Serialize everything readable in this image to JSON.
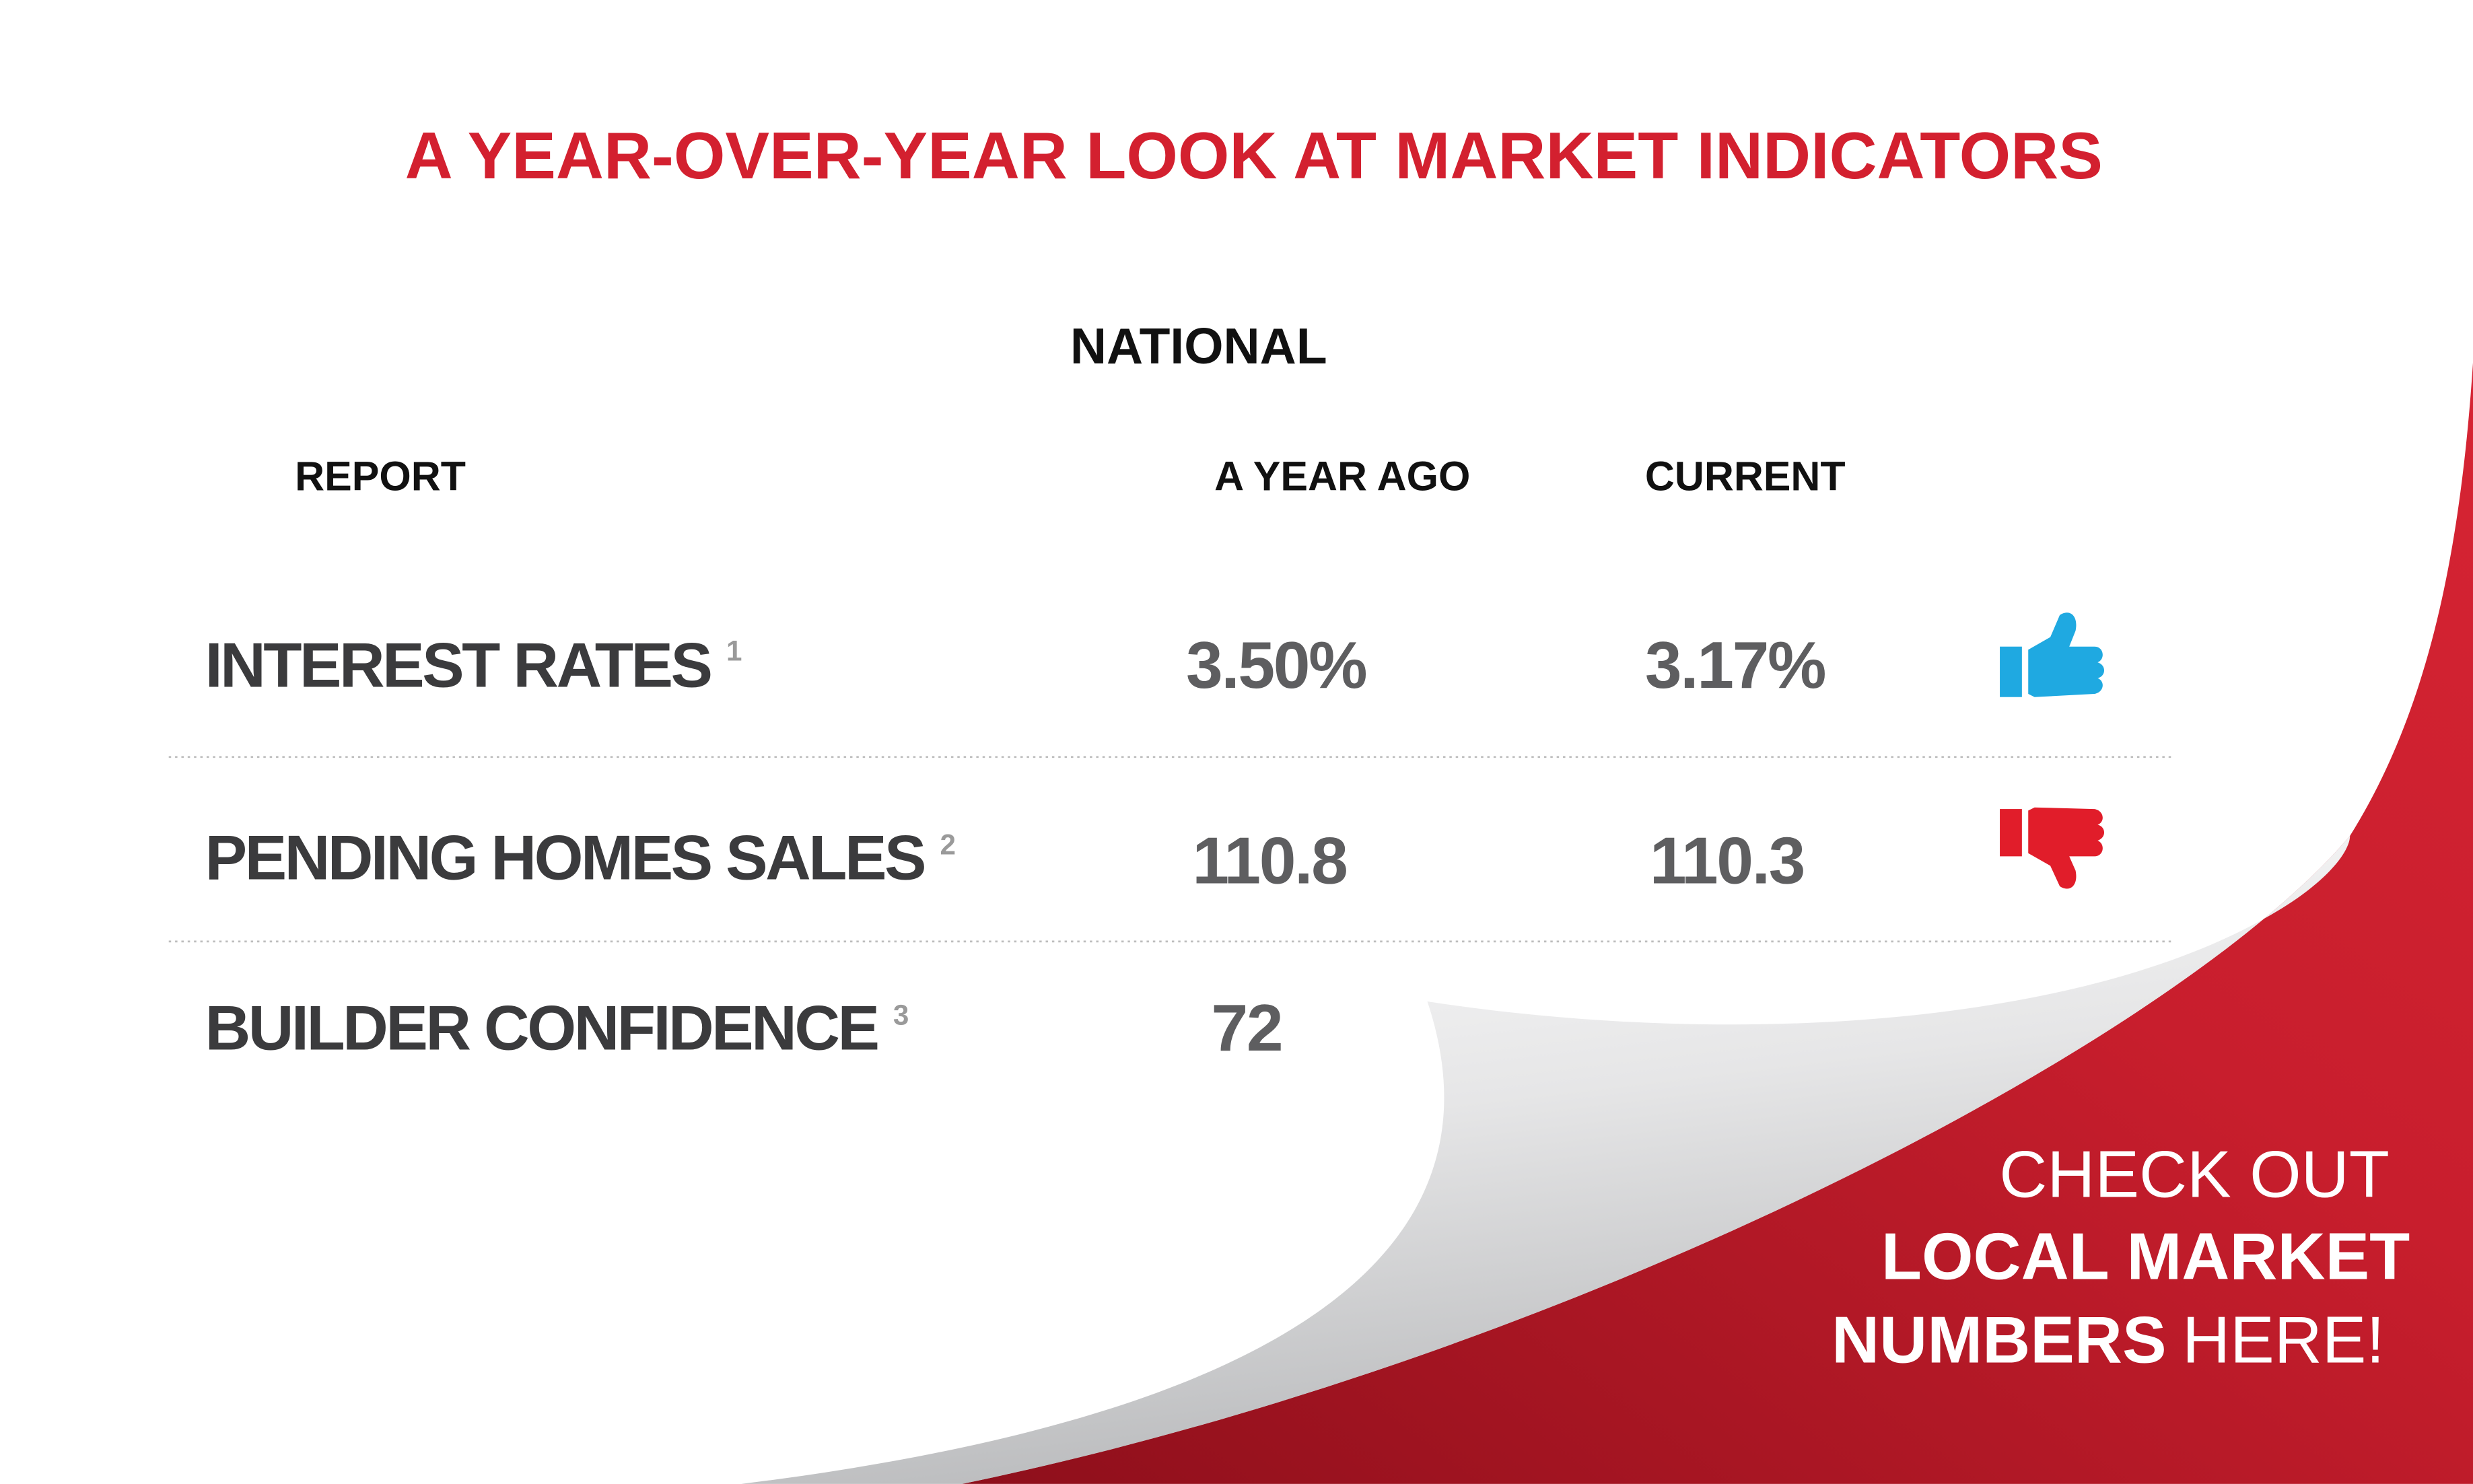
{
  "title": "A YEAR-OVER-YEAR LOOK AT MARKET INDICATORS",
  "section": "NATIONAL",
  "table": {
    "headers": [
      "REPORT",
      "A YEAR AGO",
      "CURRENT"
    ],
    "rows": [
      {
        "label": "INTEREST RATES",
        "note": "1",
        "year_ago": "3.50%",
        "current": "3.17%"
      },
      {
        "label": "PENDING HOMES SALES",
        "note": "2",
        "year_ago": "110.8",
        "current": "110.3"
      },
      {
        "label": "BUILDER CONFIDENCE",
        "note": "3",
        "year_ago": "72"
      }
    ]
  },
  "callout": {
    "line1": "CHECK OUT",
    "line2": "LOCAL MARKET",
    "line3_bold": "NUMBERS",
    "line3_rest": "HERE!"
  }
}
